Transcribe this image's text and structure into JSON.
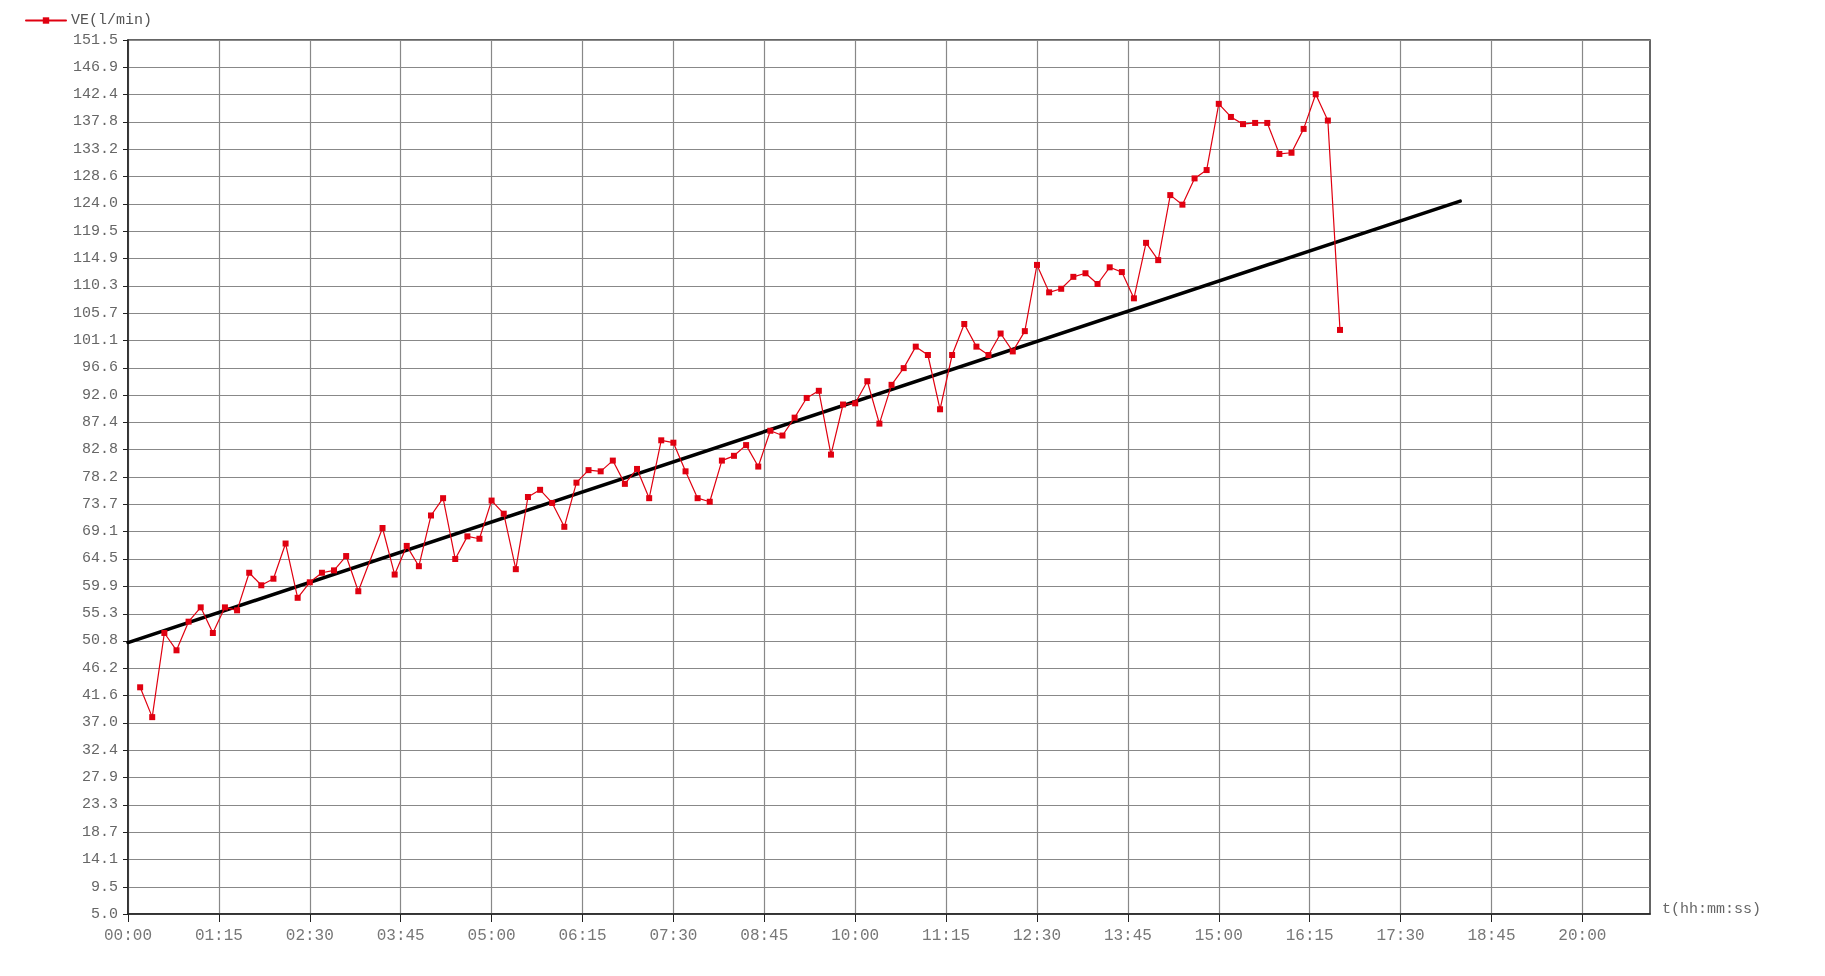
{
  "chart_data": {
    "type": "line",
    "xlabel": "t(hh:mm:ss)",
    "legend": "top left",
    "grid": true,
    "marker": "square",
    "line_style": "solid",
    "xlim": [
      0,
      20.93
    ],
    "xticks": [
      {
        "value": 0,
        "label": "00:00"
      },
      {
        "value": 1.25,
        "label": "01:15"
      },
      {
        "value": 2.5,
        "label": "02:30"
      },
      {
        "value": 3.75,
        "label": "03:45"
      },
      {
        "value": 5,
        "label": "05:00"
      },
      {
        "value": 6.25,
        "label": "06:15"
      },
      {
        "value": 7.5,
        "label": "07:30"
      },
      {
        "value": 8.75,
        "label": "08:45"
      },
      {
        "value": 10,
        "label": "10:00"
      },
      {
        "value": 11.25,
        "label": "11:15"
      },
      {
        "value": 12.5,
        "label": "12:30"
      },
      {
        "value": 13.75,
        "label": "13:45"
      },
      {
        "value": 15,
        "label": "15:00"
      },
      {
        "value": 16.25,
        "label": "16:15"
      },
      {
        "value": 17.5,
        "label": "17:30"
      },
      {
        "value": 18.75,
        "label": "18:45"
      },
      {
        "value": 20,
        "label": "20:00"
      }
    ],
    "ylim": [
      5,
      151.5
    ],
    "yticks": [
      {
        "value": 5,
        "label": "5.0"
      },
      {
        "value": 9.5,
        "label": "9.5"
      },
      {
        "value": 14.1,
        "label": "14.1"
      },
      {
        "value": 18.73,
        "label": "18.7"
      },
      {
        "value": 23.31,
        "label": "23.3"
      },
      {
        "value": 27.89,
        "label": "27.9"
      },
      {
        "value": 32.4,
        "label": "32.4"
      },
      {
        "value": 37.05,
        "label": "37.0"
      },
      {
        "value": 41.63,
        "label": "41.6"
      },
      {
        "value": 46.2,
        "label": "46.2"
      },
      {
        "value": 50.78,
        "label": "50.8"
      },
      {
        "value": 55.3,
        "label": "55.3"
      },
      {
        "value": 59.94,
        "label": "59.9"
      },
      {
        "value": 64.52,
        "label": "64.5"
      },
      {
        "value": 69.09,
        "label": "69.1"
      },
      {
        "value": 73.67,
        "label": "73.7"
      },
      {
        "value": 78.25,
        "label": "78.2"
      },
      {
        "value": 82.83,
        "label": "82.8"
      },
      {
        "value": 87.41,
        "label": "87.4"
      },
      {
        "value": 91.98,
        "label": "92.0"
      },
      {
        "value": 96.56,
        "label": "96.6"
      },
      {
        "value": 101.14,
        "label": "101.1"
      },
      {
        "value": 105.72,
        "label": "105.7"
      },
      {
        "value": 110.3,
        "label": "110.3"
      },
      {
        "value": 114.88,
        "label": "114.9"
      },
      {
        "value": 119.45,
        "label": "119.5"
      },
      {
        "value": 124.03,
        "label": "124.0"
      },
      {
        "value": 128.61,
        "label": "128.6"
      },
      {
        "value": 133.19,
        "label": "133.2"
      },
      {
        "value": 137.77,
        "label": "137.8"
      },
      {
        "value": 142.4,
        "label": "142.4"
      },
      {
        "value": 146.92,
        "label": "146.9"
      },
      {
        "value": 151.5,
        "label": "151.5"
      }
    ],
    "series": [
      {
        "name": "VE(l/min)",
        "color": "#e00010",
        "x": [
          0.167,
          0.333,
          0.5,
          0.667,
          0.833,
          1,
          1.167,
          1.333,
          1.5,
          1.667,
          1.833,
          2,
          2.167,
          2.333,
          2.5,
          2.667,
          2.833,
          3,
          3.167,
          3.5,
          3.667,
          3.833,
          4,
          4.167,
          4.333,
          4.5,
          4.667,
          4.833,
          5,
          5.167,
          5.333,
          5.5,
          5.667,
          5.833,
          6,
          6.167,
          6.333,
          6.5,
          6.667,
          6.833,
          7,
          7.167,
          7.333,
          7.5,
          7.667,
          7.833,
          8,
          8.167,
          8.333,
          8.5,
          8.667,
          8.833,
          9,
          9.167,
          9.333,
          9.5,
          9.667,
          9.833,
          10,
          10.167,
          10.333,
          10.5,
          10.667,
          10.833,
          11,
          11.167,
          11.333,
          11.5,
          11.667,
          11.833,
          12,
          12.167,
          12.333,
          12.5,
          12.667,
          12.833,
          13,
          13.167,
          13.333,
          13.5,
          13.667,
          13.833,
          14,
          14.167,
          14.333,
          14.5,
          14.667,
          14.833,
          15,
          15.167,
          15.333,
          15.5,
          15.667,
          15.833,
          16,
          16.167,
          16.333,
          16.5,
          16.667
        ],
        "values": [
          43.0,
          38.0,
          52.1,
          49.2,
          54.0,
          56.4,
          52.1,
          56.4,
          55.9,
          62.2,
          60.1,
          61.2,
          67.1,
          58.0,
          60.6,
          62.2,
          62.6,
          65.0,
          59.1,
          69.7,
          61.9,
          66.7,
          63.3,
          71.8,
          74.7,
          64.5,
          68.3,
          67.9,
          74.3,
          72.1,
          62.8,
          74.9,
          76.1,
          73.9,
          69.9,
          77.3,
          79.4,
          79.2,
          81.0,
          77.1,
          79.6,
          74.7,
          84.4,
          84.0,
          79.2,
          74.7,
          74.1,
          81.0,
          81.8,
          83.6,
          80.0,
          86.0,
          85.2,
          88.2,
          91.5,
          92.7,
          82.0,
          90.4,
          90.6,
          94.3,
          87.2,
          93.7,
          96.5,
          100.1,
          98.7,
          89.6,
          98.7,
          103.9,
          100.1,
          98.7,
          102.3,
          99.3,
          102.7,
          113.8,
          109.2,
          109.8,
          111.8,
          112.4,
          110.6,
          113.4,
          112.6,
          108.2,
          117.5,
          114.6,
          125.5,
          123.9,
          128.3,
          129.7,
          140.8,
          138.6,
          137.4,
          137.6,
          137.6,
          132.4,
          132.6,
          136.6,
          142.4,
          138.0,
          102.9
        ]
      },
      {
        "color": "#000000",
        "marker": "none",
        "x": [
          0,
          18.32
        ],
        "values": [
          50.5,
          124.5
        ]
      }
    ]
  }
}
